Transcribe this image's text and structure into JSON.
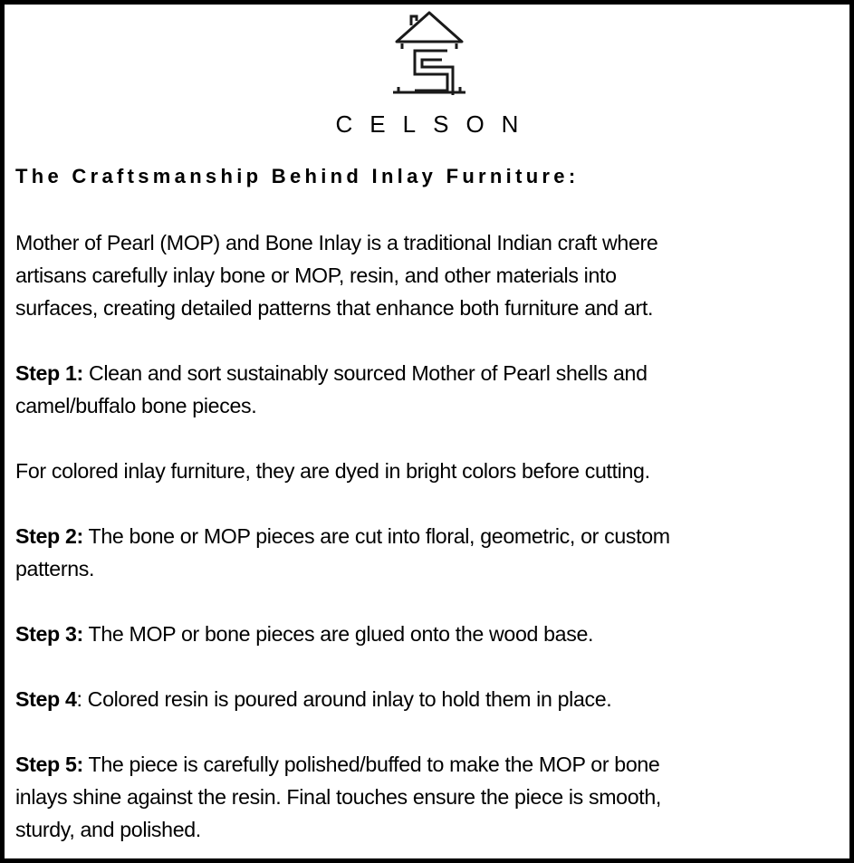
{
  "brand": {
    "name": "CELSON",
    "logo_icon": "house-with-s-icon"
  },
  "title": "The Craftsmanship Behind Inlay Furniture:",
  "intro": {
    "lines": [
      "Mother of Pearl (MOP) and Bone Inlay is a traditional Indian craft where",
      "artisans carefully inlay bone or MOP, resin, and other materials into",
      "surfaces, creating detailed patterns that enhance both furniture and art."
    ]
  },
  "step1": {
    "label": "Step 1:",
    "lines": [
      " Clean and sort sustainably sourced Mother of Pearl shells and",
      "camel/buffalo bone pieces."
    ]
  },
  "note": {
    "lines": [
      "For colored inlay furniture, they are dyed in bright colors before cutting."
    ]
  },
  "step2": {
    "label": "Step 2:",
    "lines": [
      " The bone or MOP pieces are cut into floral, geometric, or custom",
      "patterns."
    ]
  },
  "step3": {
    "label": "Step 3:",
    "lines": [
      " The MOP or bone pieces are glued onto the wood base."
    ]
  },
  "step4": {
    "label": "Step 4",
    "lines": [
      ": Colored resin is poured around inlay to hold them in place."
    ]
  },
  "step5": {
    "label": "Step 5:",
    "lines": [
      " The piece is carefully polished/buffed to make the MOP or bone",
      "inlays shine against the resin. Final touches ensure the piece is smooth,",
      "sturdy, and polished."
    ]
  }
}
